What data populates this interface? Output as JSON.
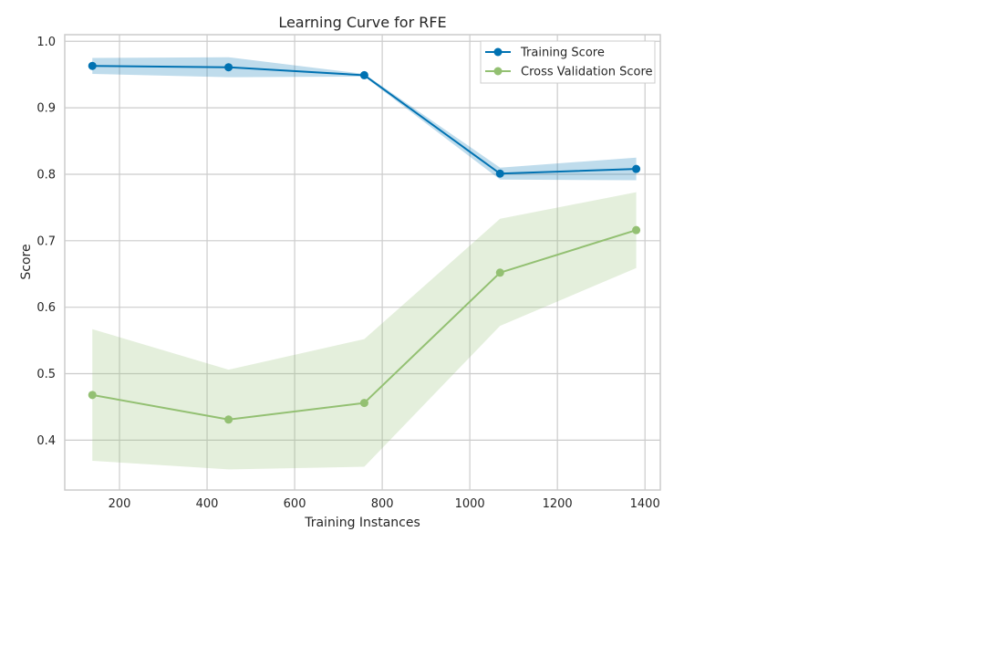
{
  "chart_data": {
    "type": "line",
    "title": "Learning Curve for RFE",
    "xlabel": "Training Instances",
    "ylabel": "Score",
    "xlim": [
      75,
      1435
    ],
    "ylim": [
      0.325,
      1.01
    ],
    "xticks": [
      200,
      400,
      600,
      800,
      1000,
      1200,
      1400
    ],
    "xtick_labels": [
      "200",
      "400",
      "600",
      "800",
      "1000",
      "1200",
      "1400"
    ],
    "yticks": [
      0.4,
      0.5,
      0.6,
      0.7,
      0.8,
      0.9,
      1.0
    ],
    "ytick_labels": [
      "0.4",
      "0.5",
      "0.6",
      "0.7",
      "0.8",
      "0.9",
      "1.0"
    ],
    "grid": true,
    "legend_position": "top-right",
    "x": [
      138,
      449,
      759,
      1069,
      1380
    ],
    "series": [
      {
        "name": "Training Score",
        "color": "#0072b2",
        "values": [
          0.963,
          0.961,
          0.949,
          0.801,
          0.808
        ],
        "band_upper": [
          0.975,
          0.976,
          0.951,
          0.81,
          0.825
        ],
        "band_lower": [
          0.951,
          0.946,
          0.947,
          0.792,
          0.791
        ]
      },
      {
        "name": "Cross Validation Score",
        "color": "#93c072",
        "values": [
          0.468,
          0.431,
          0.456,
          0.652,
          0.716
        ],
        "band_upper": [
          0.567,
          0.506,
          0.552,
          0.733,
          0.773
        ],
        "band_lower": [
          0.369,
          0.356,
          0.36,
          0.572,
          0.659
        ]
      }
    ]
  }
}
